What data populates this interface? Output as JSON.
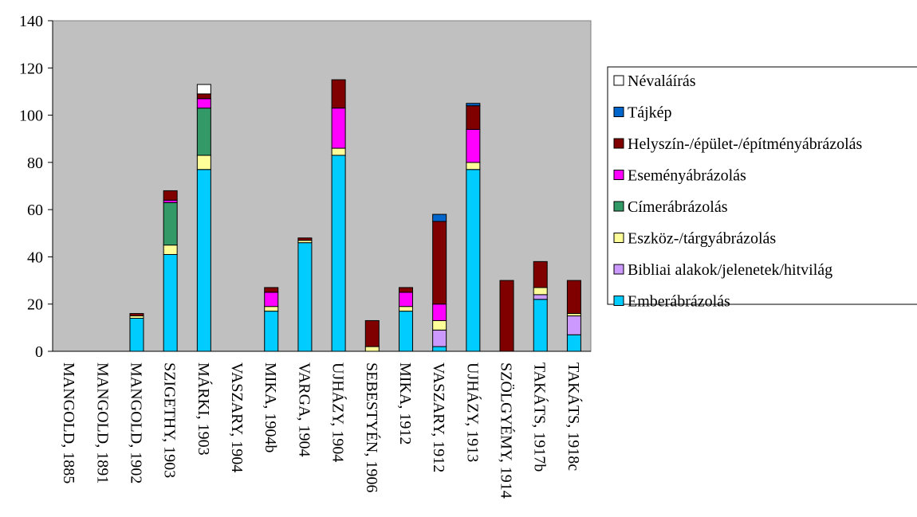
{
  "chart_data": {
    "type": "bar",
    "stacked": true,
    "ylim": [
      0,
      140
    ],
    "yticks": [
      0,
      20,
      40,
      60,
      80,
      100,
      120,
      140
    ],
    "grid": false,
    "legend_position": "right",
    "plot_background": "#C0C0C0",
    "categories": [
      "MANGOLD, 1885",
      "MANGOLD, 1891",
      "MANGOLD, 1902",
      "SZIGETHY, 1903",
      "MÁRKI, 1903",
      "VASZARY, 1904",
      "MIKA, 1904b",
      "VARGA, 1904",
      "UJHÁZY, 1904",
      "SEBESTYÉN, 1906",
      "MIKA, 1912",
      "VASZARY, 1912",
      "UJHÁZY, 1913",
      "SZÖLGYÉMY, 1914",
      "TAKÁTS, 1917b",
      "TAKÁTS, 1918c"
    ],
    "series": [
      {
        "name": "Emberábrázolás",
        "color": "#00CCFF",
        "values": [
          0,
          0,
          14,
          41,
          77,
          0,
          17,
          46,
          83,
          0,
          17,
          2,
          77,
          0,
          22,
          7
        ]
      },
      {
        "name": "Bibliai alakok/jelenetek/hitvilág",
        "color": "#CC99FF",
        "values": [
          0,
          0,
          0,
          0,
          0,
          0,
          0,
          0,
          0,
          0,
          0,
          7,
          0,
          0,
          2,
          8
        ]
      },
      {
        "name": "Eszköz-/tárgyábrázolás",
        "color": "#FFFF99",
        "values": [
          0,
          0,
          1,
          4,
          6,
          0,
          2,
          1,
          3,
          2,
          2,
          4,
          3,
          0,
          3,
          1
        ]
      },
      {
        "name": "Címerábrázolás",
        "color": "#339966",
        "values": [
          0,
          0,
          0,
          18,
          20,
          0,
          0,
          0,
          0,
          0,
          0,
          0,
          0,
          0,
          0,
          0
        ]
      },
      {
        "name": "Eseményábrázolás",
        "color": "#FF00FF",
        "values": [
          0,
          0,
          0,
          1,
          4,
          0,
          6,
          0,
          17,
          0,
          6,
          7,
          14,
          0,
          0,
          0
        ]
      },
      {
        "name": "Helyszín-/épület-/építményábrázolás",
        "color": "#800000",
        "values": [
          0,
          0,
          1,
          4,
          2,
          0,
          2,
          1,
          12,
          11,
          2,
          35,
          10,
          30,
          11,
          14
        ]
      },
      {
        "name": "Tájkép",
        "color": "#0066CC",
        "values": [
          0,
          0,
          0,
          0,
          0,
          0,
          0,
          0,
          0,
          0,
          0,
          3,
          1,
          0,
          0,
          0
        ]
      },
      {
        "name": "Névaláírás",
        "color": "#FFFFFF",
        "values": [
          0,
          0,
          0,
          0,
          4,
          0,
          0,
          0,
          0,
          0,
          0,
          0,
          0,
          0,
          0,
          0
        ]
      }
    ]
  }
}
